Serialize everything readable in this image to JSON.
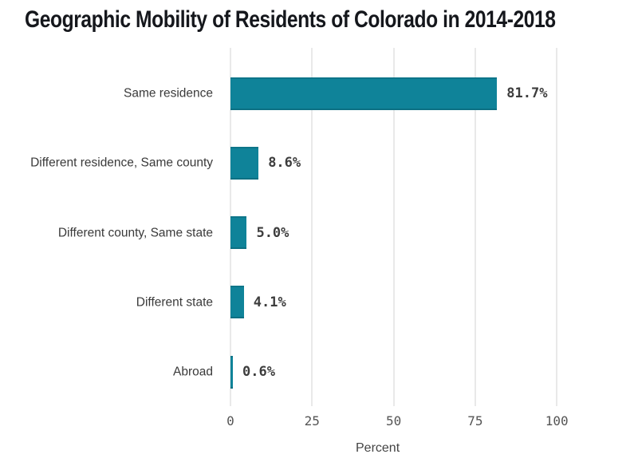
{
  "chart_data": {
    "type": "bar",
    "orientation": "horizontal",
    "title": "Geographic Mobility of Residents of Colorado in 2014-2018",
    "categories": [
      "Same residence",
      "Different residence, Same county",
      "Different county, Same state",
      "Different state",
      "Abroad"
    ],
    "values": [
      81.7,
      8.6,
      5.0,
      4.1,
      0.6
    ],
    "value_labels": [
      "81.7%",
      "8.6%",
      "5.0%",
      "4.1%",
      "0.6%"
    ],
    "xlabel": "Percent",
    "x_ticks": [
      "0",
      "25",
      "50",
      "75",
      "100"
    ],
    "x_tick_values": [
      0,
      25,
      50,
      75,
      100
    ],
    "xlim": [
      0,
      120
    ],
    "grid": "vertical-only",
    "legend": "none",
    "bar_color": "#0f8399",
    "gridline_color": "#e9e9e9",
    "title_color": "#15171c",
    "label_color": "#3a3a3a",
    "value_label_color": "#3d3d3d",
    "tick_label_color": "#555555",
    "background_color": "#ffffff"
  }
}
